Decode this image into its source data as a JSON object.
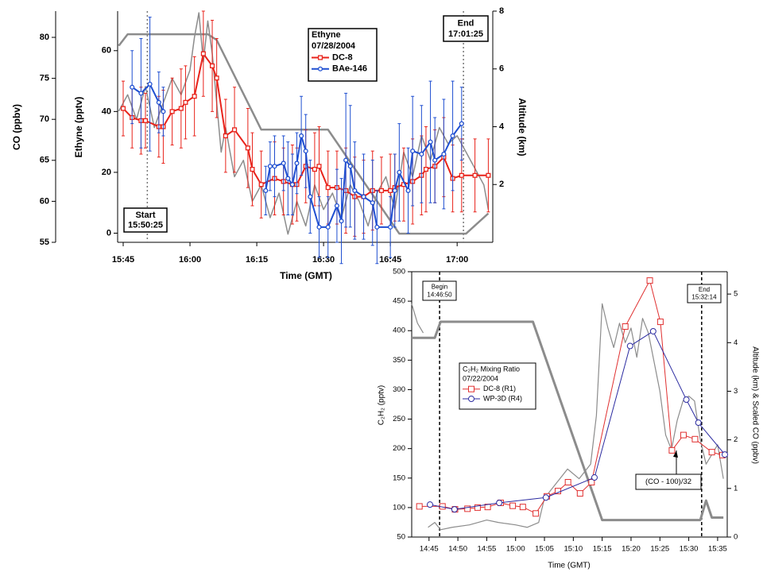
{
  "chart_data": [
    {
      "type": "line",
      "legend_title": "Ethyne",
      "date": "07/28/2004",
      "xlabel": "Time (GMT)",
      "ylabel": "Ethyne (pptv)",
      "y2label": "Altitude (km)",
      "y3label": "CO (ppbv)",
      "xlim": [
        "15:43:45",
        "17:08:00"
      ],
      "xticks": [
        "15:45",
        "16:00",
        "16:15",
        "16:30",
        "16:45",
        "17:00"
      ],
      "ylim": [
        -3,
        73
      ],
      "yticks": [
        0,
        20,
        40,
        60
      ],
      "y2lim": [
        0,
        8
      ],
      "y2ticks": [
        2,
        4,
        6,
        8
      ],
      "y3lim": [
        55,
        83.2
      ],
      "y3ticks": [
        55,
        60,
        65,
        70,
        75,
        80
      ],
      "annotations": [
        {
          "label": "Start",
          "time": "15:50:25"
        },
        {
          "label": "End",
          "time": "17:01:25"
        }
      ],
      "series": [
        {
          "axis": "y3",
          "color": "#8c8c8c",
          "line_width": 1.5,
          "x": [
            "15:44",
            "15:46",
            "15:48",
            "15:50",
            "15:52",
            "15:54",
            "15:56",
            "15:58",
            "16:00",
            "16:01",
            "16:02",
            "16:03",
            "16:04",
            "16:05",
            "16:06",
            "16:07",
            "16:08",
            "16:10",
            "16:12",
            "16:14",
            "16:16",
            "16:18",
            "16:20",
            "16:22",
            "16:24",
            "16:26",
            "16:28",
            "16:30",
            "16:32",
            "16:34",
            "16:36",
            "16:38",
            "16:40",
            "16:42",
            "16:44",
            "16:46",
            "16:48",
            "16:50",
            "16:52",
            "16:54",
            "16:56",
            "16:58",
            "17:00",
            "17:02",
            "17:04",
            "17:06",
            "17:07"
          ],
          "values": [
            71,
            73,
            70,
            74,
            69,
            72,
            75,
            73,
            76,
            80,
            83,
            77,
            82,
            78,
            72,
            66,
            69,
            63,
            65,
            60,
            62,
            58,
            61,
            56,
            60,
            57,
            62,
            59,
            61,
            58,
            62,
            60,
            57,
            61,
            63,
            59,
            66,
            63,
            68,
            65,
            69,
            67,
            68,
            66,
            64,
            62,
            59
          ]
        },
        {
          "axis": "y2",
          "color": "#8c8c8c",
          "line_width": 2.5,
          "x": [
            "15:44",
            "15:46",
            "16:04",
            "16:06",
            "16:16",
            "16:31",
            "16:47",
            "17:02",
            "17:07"
          ],
          "values": [
            6.8,
            7.2,
            7.2,
            7.0,
            3.9,
            3.9,
            0.3,
            0.3,
            1.0
          ]
        },
        {
          "name": "DC-8",
          "color": "#e8231b",
          "marker": "square",
          "line_width": 2,
          "x": [
            "15:45",
            "15:47",
            "15:49",
            "15:50",
            "15:53",
            "15:54",
            "15:56",
            "15:58",
            "15:59",
            "16:01",
            "16:03",
            "16:05",
            "16:06",
            "16:08",
            "16:10",
            "16:13",
            "16:14",
            "16:16",
            "16:19",
            "16:21",
            "16:23",
            "16:24",
            "16:26",
            "16:28",
            "16:29",
            "16:31",
            "16:33",
            "16:35",
            "16:37",
            "16:39",
            "16:41",
            "16:43",
            "16:45",
            "16:46",
            "16:48",
            "16:50",
            "16:52",
            "16:53",
            "16:55",
            "16:57",
            "16:59",
            "17:01",
            "17:04",
            "17:07"
          ],
          "values": [
            41,
            38,
            37,
            37,
            35,
            35,
            40,
            41,
            43,
            45,
            59,
            55,
            51,
            32,
            34,
            28,
            21,
            16,
            18,
            17,
            16,
            16,
            22,
            21,
            22,
            15,
            15,
            14,
            12,
            12,
            14,
            14,
            14,
            15,
            16,
            17,
            19,
            21,
            22,
            25,
            18,
            19,
            19,
            19
          ],
          "errors": [
            9,
            10,
            11,
            9,
            10,
            12,
            11,
            13,
            12,
            13,
            14,
            15,
            13,
            12,
            14,
            13,
            12,
            11,
            12,
            11,
            13,
            12,
            12,
            12,
            13,
            12,
            12,
            14,
            13,
            12,
            13,
            11,
            12,
            11,
            12,
            14,
            13,
            14,
            12,
            13,
            11,
            12,
            12,
            12
          ]
        },
        {
          "name": "BAe-146",
          "color": "#1f4fd1",
          "marker": "circle",
          "line_width": 2,
          "x": [
            "15:47",
            "15:49",
            "15:51",
            "15:53",
            "15:54",
            "16:05",
            "16:17",
            "16:18",
            "16:19",
            "16:21",
            "16:22",
            "16:23",
            "16:24",
            "16:25",
            "16:26",
            "16:27",
            "16:29",
            "16:31",
            "16:33",
            "16:34",
            "16:35",
            "16:36",
            "16:37",
            "16:39",
            "16:41",
            "16:42",
            "16:45",
            "16:46",
            "16:47",
            "16:49",
            "16:50",
            "16:52",
            "16:54",
            "16:55",
            "16:57",
            "16:59",
            "17:01"
          ],
          "values": [
            48,
            46,
            49,
            43,
            40,
            null,
            14,
            22,
            22,
            23,
            18,
            16,
            23,
            32,
            27,
            12,
            2,
            2,
            9,
            4,
            24,
            22,
            14,
            12,
            10,
            2,
            2,
            14,
            20,
            14,
            27,
            26,
            30,
            24,
            26,
            32,
            36
          ],
          "errors": [
            12,
            18,
            22,
            10,
            8,
            null,
            8,
            8,
            10,
            9,
            12,
            10,
            10,
            13,
            12,
            12,
            10,
            10,
            12,
            14,
            22,
            20,
            16,
            14,
            14,
            12,
            10,
            12,
            16,
            14,
            18,
            16,
            20,
            14,
            18,
            18,
            12
          ]
        }
      ]
    },
    {
      "type": "line",
      "legend_title": "C₂H₂ Mixing Ratio",
      "date": "07/22/2004",
      "xlabel": "Time (GMT)",
      "ylabel": "C₂H₂  (pptv)",
      "y2label": "Altitude  (km) & Scaled CO  (ppbv)",
      "xlim": [
        "14:42:00",
        "15:36:40"
      ],
      "xticks": [
        "14:45",
        "14:50",
        "14:55",
        "15:00",
        "15:05",
        "15:10",
        "15:15",
        "15:20",
        "15:25",
        "15:30",
        "15:35"
      ],
      "ylim": [
        50,
        500
      ],
      "yticks": [
        50,
        100,
        150,
        200,
        250,
        300,
        350,
        400,
        450,
        500
      ],
      "y2lim": [
        0,
        5.46
      ],
      "y2ticks": [
        0,
        1,
        2,
        3,
        4,
        5
      ],
      "annotations": [
        {
          "label": "Begin",
          "time": "14:46:50"
        },
        {
          "label": "End",
          "time": "15:32:14"
        }
      ],
      "note": "(CO - 100)/32",
      "series": [
        {
          "axis": "y2",
          "color": "#8c8c8c",
          "line_width": 1.2,
          "x": [
            "14:42:00",
            "14:43:00",
            "14:44:00",
            "14:44:40",
            "14:44:50",
            "14:46:00",
            "14:47:00",
            "14:49:00",
            "14:52:00",
            "14:55:00",
            "14:57:00",
            "15:00:00",
            "15:02:00",
            "15:04:00",
            "15:05:00",
            "15:07:00",
            "15:09:00",
            "15:11:00",
            "15:13:00",
            "15:14:00",
            "15:15:00",
            "15:16:00",
            "15:17:00",
            "15:18:00",
            "15:19:00",
            "15:20:00",
            "15:21:00",
            "15:22:00",
            "15:23:00",
            "15:24:00",
            "15:25:00",
            "15:26:00",
            "15:27:00",
            "15:28:00",
            "15:29:00",
            "15:30:00",
            "15:31:00",
            "15:32:00",
            "15:33:00",
            "15:34:00",
            "15:35:00",
            "15:36:00"
          ],
          "values": [
            4.8,
            4.4,
            4.2,
            null,
            0.2,
            0.3,
            0.15,
            0.2,
            0.25,
            0.35,
            0.3,
            0.25,
            0.2,
            0.3,
            0.8,
            1.1,
            1.4,
            1.2,
            1.5,
            2.5,
            4.8,
            4.3,
            3.9,
            4.4,
            4.0,
            4.3,
            3.7,
            4.5,
            4.2,
            3.6,
            3.0,
            2.1,
            1.8,
            2.4,
            2.8,
            2.9,
            2.8,
            2.0,
            1.5,
            1.7,
            1.9,
            1.2
          ]
        },
        {
          "axis": "y2",
          "color": "#8c8c8c",
          "line_width": 3,
          "x": [
            "14:42:00",
            "14:46:00",
            "14:47:00",
            "15:03:00",
            "15:15:00",
            "15:32:00",
            "15:33:00",
            "15:34:00",
            "15:36:00"
          ],
          "values": [
            4.1,
            4.1,
            4.43,
            4.43,
            0.35,
            0.35,
            0.75,
            0.4,
            0.4
          ]
        },
        {
          "name": "DC-8 (R1)",
          "color": "#e03030",
          "marker": "square",
          "line_width": 1,
          "x": [
            "14:43:20",
            "14:47:20",
            "14:49:30",
            "14:51:40",
            "14:53:25",
            "14:55:10",
            "14:57:25",
            "14:59:30",
            "15:01:15",
            "15:03:30",
            "15:05:25",
            "15:07:20",
            "15:09:05",
            "15:11:10",
            "15:13:10",
            "15:19:00",
            "15:23:15",
            "15:25:05",
            "15:27:05",
            "15:29:05",
            "15:31:05",
            "15:34:00",
            "15:35:50"
          ],
          "values": [
            102,
            102,
            97,
            98,
            100,
            101,
            108,
            103,
            101,
            90,
            119,
            128,
            143,
            124,
            143,
            407,
            485,
            415,
            197,
            223,
            216,
            194,
            189
          ]
        },
        {
          "name": "WP-3D (R4)",
          "color": "#2a2aa0",
          "marker": "circle",
          "line_width": 1,
          "x": [
            "14:45:10",
            "14:49:25",
            "14:57:10",
            "15:05:15",
            "15:13:40",
            "15:19:50",
            "15:23:50",
            "15:29:35",
            "15:31:40",
            "15:36:15"
          ],
          "values": [
            105,
            97,
            108,
            117,
            151,
            374,
            399,
            283,
            244,
            190
          ]
        }
      ]
    }
  ]
}
